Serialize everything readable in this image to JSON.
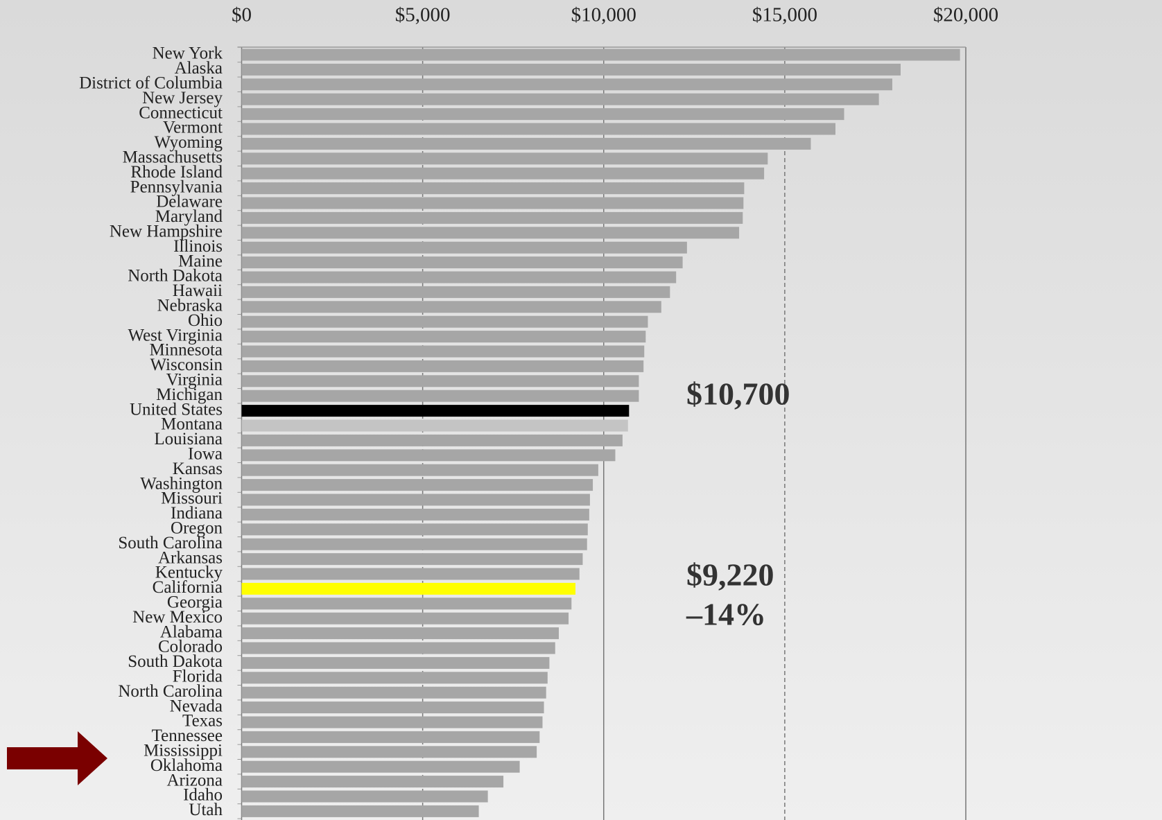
{
  "chart_data": {
    "type": "hbar",
    "categories": [
      "New York",
      "Alaska",
      "District of Columbia",
      "New Jersey",
      "Connecticut",
      "Vermont",
      "Wyoming",
      "Massachusetts",
      "Rhode Island",
      "Pennsylvania",
      "Delaware",
      "Maryland",
      "New Hampshire",
      "Illinois",
      "Maine",
      "North Dakota",
      "Hawaii",
      "Nebraska",
      "Ohio",
      "West Virginia",
      "Minnesota",
      "Wisconsin",
      "Virginia",
      "Michigan",
      "United States",
      "Montana",
      "Louisiana",
      "Iowa",
      "Kansas",
      "Washington",
      "Missouri",
      "Indiana",
      "Oregon",
      "South Carolina",
      "Arkansas",
      "Kentucky",
      "California",
      "Georgia",
      "New Mexico",
      "Alabama",
      "Colorado",
      "South Dakota",
      "Florida",
      "North Carolina",
      "Nevada",
      "Texas",
      "Tennessee",
      "Mississippi",
      "Oklahoma",
      "Arizona",
      "Idaho",
      "Utah"
    ],
    "values": [
      19840,
      18200,
      17970,
      17600,
      16640,
      16400,
      15720,
      14530,
      14430,
      13880,
      13860,
      13840,
      13740,
      12300,
      12180,
      12000,
      11830,
      11590,
      11220,
      11160,
      11120,
      11100,
      10970,
      10970,
      10700,
      10670,
      10520,
      10320,
      9850,
      9700,
      9620,
      9600,
      9560,
      9540,
      9420,
      9330,
      9220,
      9110,
      9030,
      8760,
      8660,
      8500,
      8450,
      8410,
      8350,
      8310,
      8230,
      8150,
      7680,
      7230,
      6800,
      6550
    ],
    "colors": [
      "#a6a6a6",
      "#a6a6a6",
      "#a6a6a6",
      "#a6a6a6",
      "#a6a6a6",
      "#a6a6a6",
      "#a6a6a6",
      "#a6a6a6",
      "#a6a6a6",
      "#a6a6a6",
      "#a6a6a6",
      "#a6a6a6",
      "#a6a6a6",
      "#a6a6a6",
      "#a6a6a6",
      "#a6a6a6",
      "#a6a6a6",
      "#a6a6a6",
      "#a6a6a6",
      "#a6a6a6",
      "#a6a6a6",
      "#a6a6a6",
      "#a6a6a6",
      "#a6a6a6",
      "#000000",
      "#c4c4c4",
      "#a6a6a6",
      "#a6a6a6",
      "#a6a6a6",
      "#a6a6a6",
      "#a6a6a6",
      "#a6a6a6",
      "#a6a6a6",
      "#a6a6a6",
      "#a6a6a6",
      "#a6a6a6",
      "#ffff00",
      "#a6a6a6",
      "#a6a6a6",
      "#a6a6a6",
      "#a6a6a6",
      "#a6a6a6",
      "#a6a6a6",
      "#a6a6a6",
      "#a6a6a6",
      "#a6a6a6",
      "#a6a6a6",
      "#a6a6a6",
      "#a6a6a6",
      "#a6a6a6",
      "#a6a6a6",
      "#a6a6a6"
    ],
    "xlim": [
      0,
      20000
    ],
    "xticks": [
      {
        "value": 0,
        "label": "$0"
      },
      {
        "value": 5000,
        "label": "$5,000"
      },
      {
        "value": 10000,
        "label": "$10,000"
      },
      {
        "value": 15000,
        "label": "$15,000"
      },
      {
        "value": 20000,
        "label": "$20,000"
      }
    ],
    "grid": true,
    "annotations": [
      "$10,700",
      "$9,220",
      "–14%"
    ]
  }
}
